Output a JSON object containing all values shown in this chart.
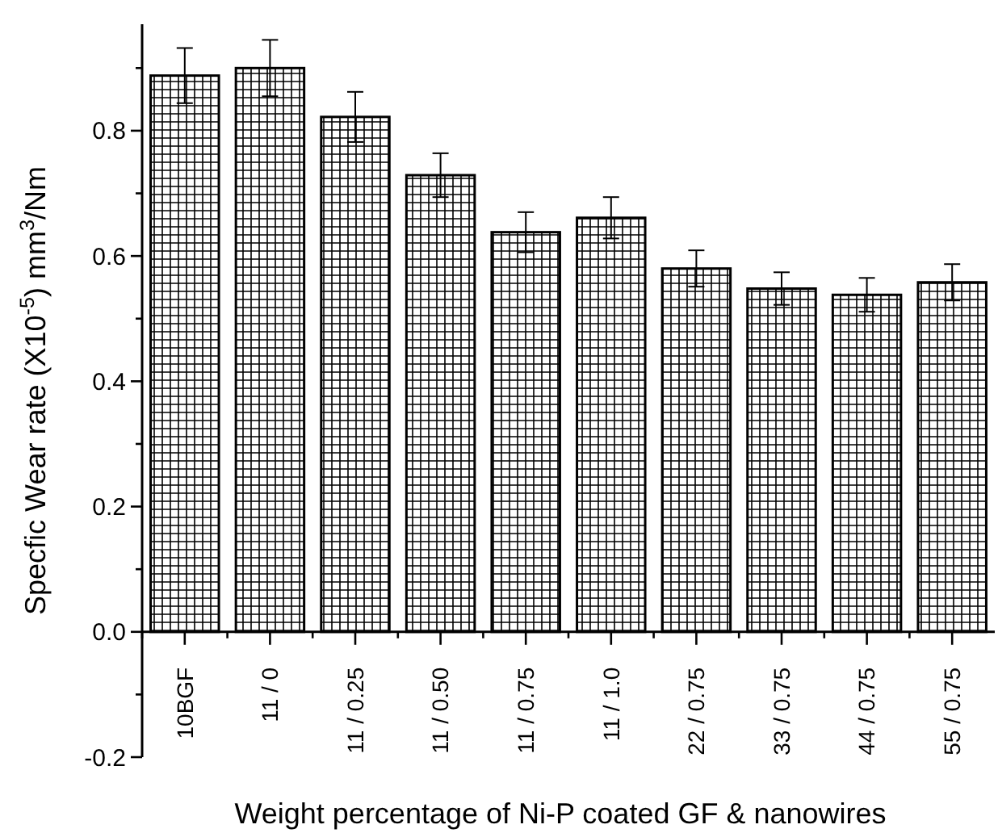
{
  "chart_data": {
    "type": "bar",
    "xlabel": "Weight percentage of Ni-P coated GF & nanowires",
    "ylabel": "Specfic Wear rate (X10$^{-5}$) mm$^{3}$/Nm",
    "categories": [
      "10BGF",
      "11 / 0",
      "11 / 0.25",
      "11 / 0.50",
      "11 / 0.75",
      "11 / 1.0",
      "22 / 0.75",
      "33 / 0.75",
      "44 / 0.75",
      "55 / 0.75"
    ],
    "values": [
      0.888,
      0.9,
      0.822,
      0.729,
      0.638,
      0.661,
      0.58,
      0.548,
      0.538,
      0.558
    ],
    "errors": [
      0.044,
      0.045,
      0.04,
      0.035,
      0.032,
      0.033,
      0.029,
      0.026,
      0.027,
      0.029
    ],
    "color": "#000000",
    "ylim": [
      -0.2,
      0.97
    ],
    "yticks": [
      {
        "value": -0.2,
        "label": "-0.2"
      },
      {
        "value": -0.1,
        "label": null
      },
      {
        "value": 0,
        "label": "0.0"
      },
      {
        "value": 0.1,
        "label": null
      },
      {
        "value": 0.2,
        "label": "0.2"
      },
      {
        "value": 0.3,
        "label": null
      },
      {
        "value": 0.4,
        "label": "0.4"
      },
      {
        "value": 0.5,
        "label": null
      },
      {
        "value": 0.6,
        "label": "0.6"
      },
      {
        "value": 0.7,
        "label": null
      },
      {
        "value": 0.8,
        "label": "0.8"
      },
      {
        "value": 0.9,
        "label": null
      }
    ],
    "grid": false
  }
}
